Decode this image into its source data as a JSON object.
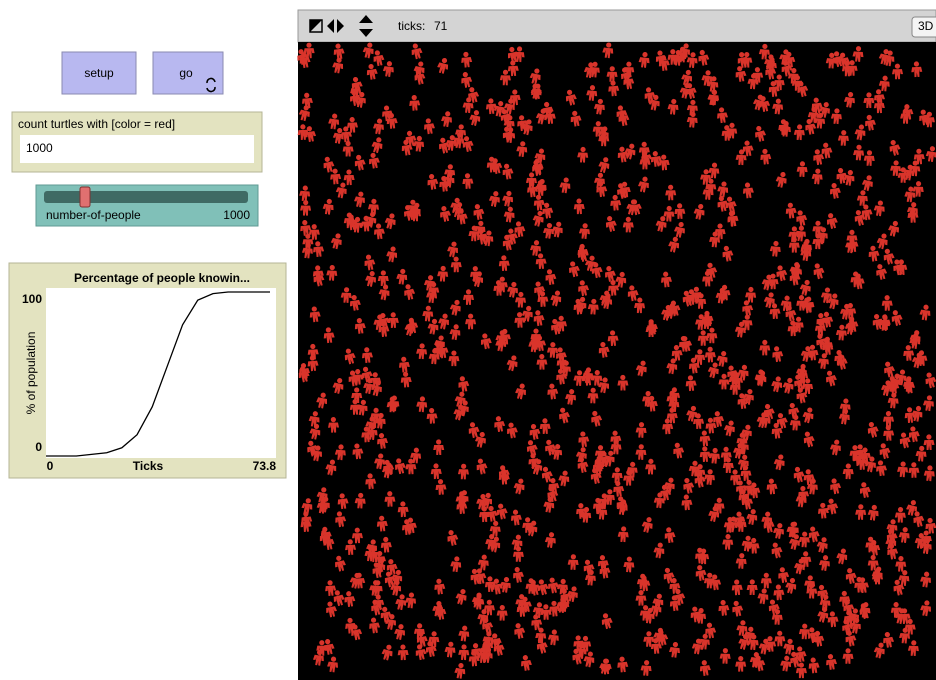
{
  "buttons": [
    {
      "label": "setup"
    },
    {
      "label": "go"
    }
  ],
  "monitor": {
    "label": "count turtles with [color = red]",
    "value": 1000
  },
  "slider": {
    "label": "number-of-people",
    "value": 1000
  },
  "view": {
    "ticks_label": "ticks:",
    "ticks": 71,
    "mode_button": "3D"
  },
  "chart_data": {
    "type": "line",
    "title": "Percentage of people knowin...",
    "xlabel": "Ticks",
    "ylabel": "% of population",
    "x": [
      0,
      5,
      10,
      15,
      20,
      25,
      30,
      35,
      40,
      45,
      50,
      55,
      60,
      65,
      70,
      73.8
    ],
    "values": [
      0,
      0,
      0,
      1,
      2,
      5,
      13,
      30,
      55,
      80,
      95,
      99,
      100,
      100,
      100,
      100
    ],
    "color": "#000000",
    "xlim": [
      0,
      73.8
    ],
    "xticks": [
      0,
      73.8
    ],
    "ylim": [
      0,
      100
    ],
    "yticks": [
      0,
      100
    ]
  }
}
